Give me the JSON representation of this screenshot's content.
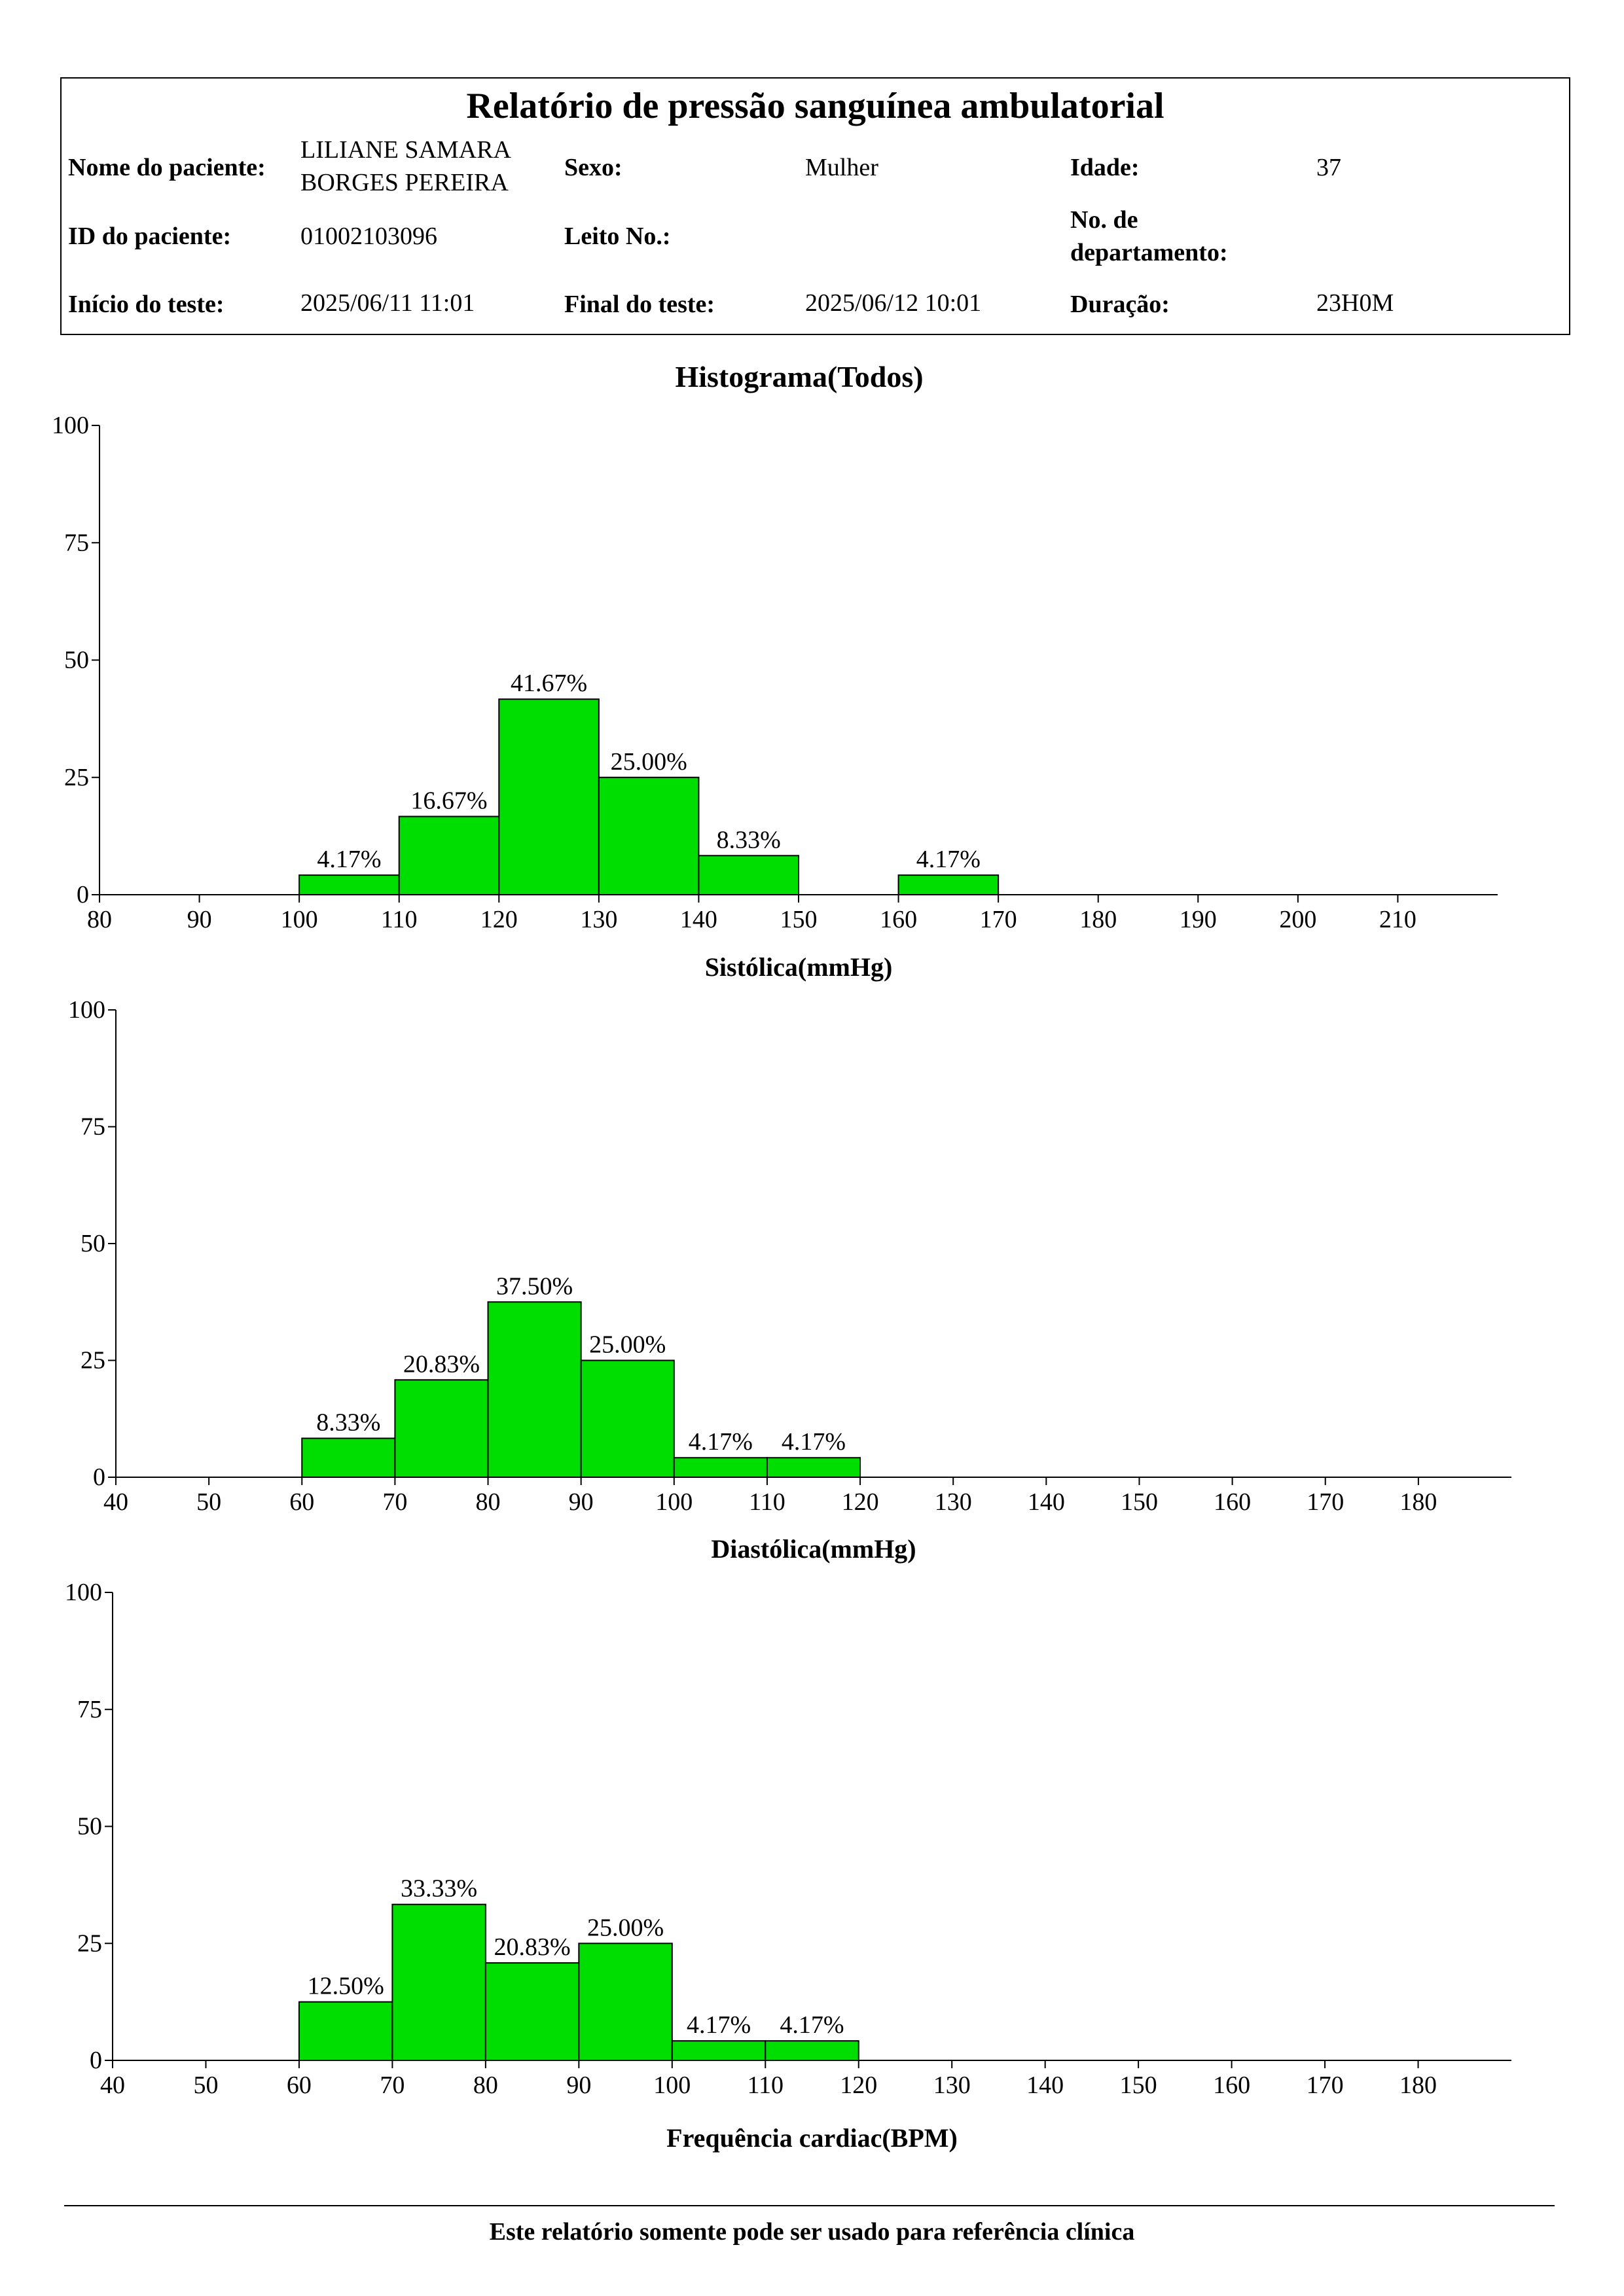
{
  "header": {
    "title": "Relatório de pressão sanguínea ambulatorial",
    "patient_name_label": "Nome do paciente:",
    "patient_name_line1": "LILIANE SAMARA",
    "patient_name_line2": "BORGES PEREIRA",
    "sex_label": "Sexo:",
    "sex_value": "Mulher",
    "age_label": "Idade:",
    "age_value": "37",
    "patient_id_label": "ID do paciente:",
    "patient_id_value": "01002103096",
    "bed_label": "Leito No.:",
    "bed_value": "",
    "dept_label_line1": "No. de",
    "dept_label_line2": "departamento:",
    "dept_value": "",
    "start_label": "Início do teste:",
    "start_value": "2025/06/11 11:01",
    "end_label": "Final do teste:",
    "end_value": "2025/06/12 10:01",
    "duration_label": "Duração:",
    "duration_value": "23H0M"
  },
  "histogram_title": "Histograma(Todos)",
  "footer": {
    "text": "Este relatório somente pode ser usado para referência clínica"
  },
  "colors": {
    "bar_fill": "#00dd00",
    "bar_stroke": "#000000"
  },
  "chart_data": [
    {
      "type": "bar",
      "xlabel": "Sistólica(mmHg)",
      "ylabel": "",
      "xlim": [
        80,
        220
      ],
      "ylim": [
        0,
        100
      ],
      "x_ticks": [
        80,
        90,
        100,
        110,
        120,
        130,
        140,
        150,
        160,
        170,
        180,
        190,
        200,
        210
      ],
      "y_ticks": [
        0,
        25,
        50,
        75,
        100
      ],
      "bin_width": 10,
      "bins": [
        {
          "from": 100,
          "to": 110,
          "value": 4.17,
          "label": "4.17%"
        },
        {
          "from": 110,
          "to": 120,
          "value": 16.67,
          "label": "16.67%"
        },
        {
          "from": 120,
          "to": 130,
          "value": 41.67,
          "label": "41.67%"
        },
        {
          "from": 130,
          "to": 140,
          "value": 25.0,
          "label": "25.00%"
        },
        {
          "from": 140,
          "to": 150,
          "value": 8.33,
          "label": "8.33%"
        },
        {
          "from": 160,
          "to": 170,
          "value": 4.17,
          "label": "4.17%"
        }
      ]
    },
    {
      "type": "bar",
      "xlabel": "Diastólica(mmHg)",
      "ylabel": "",
      "xlim": [
        40,
        190
      ],
      "ylim": [
        0,
        100
      ],
      "x_ticks": [
        40,
        50,
        60,
        70,
        80,
        90,
        100,
        110,
        120,
        130,
        140,
        150,
        160,
        170,
        180
      ],
      "y_ticks": [
        0,
        25,
        50,
        75,
        100
      ],
      "bin_width": 10,
      "bins": [
        {
          "from": 60,
          "to": 70,
          "value": 8.33,
          "label": "8.33%"
        },
        {
          "from": 70,
          "to": 80,
          "value": 20.83,
          "label": "20.83%"
        },
        {
          "from": 80,
          "to": 90,
          "value": 37.5,
          "label": "37.50%"
        },
        {
          "from": 90,
          "to": 100,
          "value": 25.0,
          "label": "25.00%"
        },
        {
          "from": 100,
          "to": 110,
          "value": 4.17,
          "label": "4.17%"
        },
        {
          "from": 110,
          "to": 120,
          "value": 4.17,
          "label": "4.17%"
        }
      ]
    },
    {
      "type": "bar",
      "xlabel": "Frequência cardiac(BPM)",
      "ylabel": "",
      "xlim": [
        40,
        190
      ],
      "ylim": [
        0,
        100
      ],
      "x_ticks": [
        40,
        50,
        60,
        70,
        80,
        90,
        100,
        110,
        120,
        130,
        140,
        150,
        160,
        170,
        180
      ],
      "y_ticks": [
        0,
        25,
        50,
        75,
        100
      ],
      "bin_width": 10,
      "bins": [
        {
          "from": 60,
          "to": 70,
          "value": 12.5,
          "label": "12.50%"
        },
        {
          "from": 70,
          "to": 80,
          "value": 33.33,
          "label": "33.33%"
        },
        {
          "from": 80,
          "to": 90,
          "value": 20.83,
          "label": "20.83%"
        },
        {
          "from": 90,
          "to": 100,
          "value": 25.0,
          "label": "25.00%"
        },
        {
          "from": 100,
          "to": 110,
          "value": 4.17,
          "label": "4.17%"
        },
        {
          "from": 110,
          "to": 120,
          "value": 4.17,
          "label": "4.17%"
        }
      ]
    }
  ]
}
